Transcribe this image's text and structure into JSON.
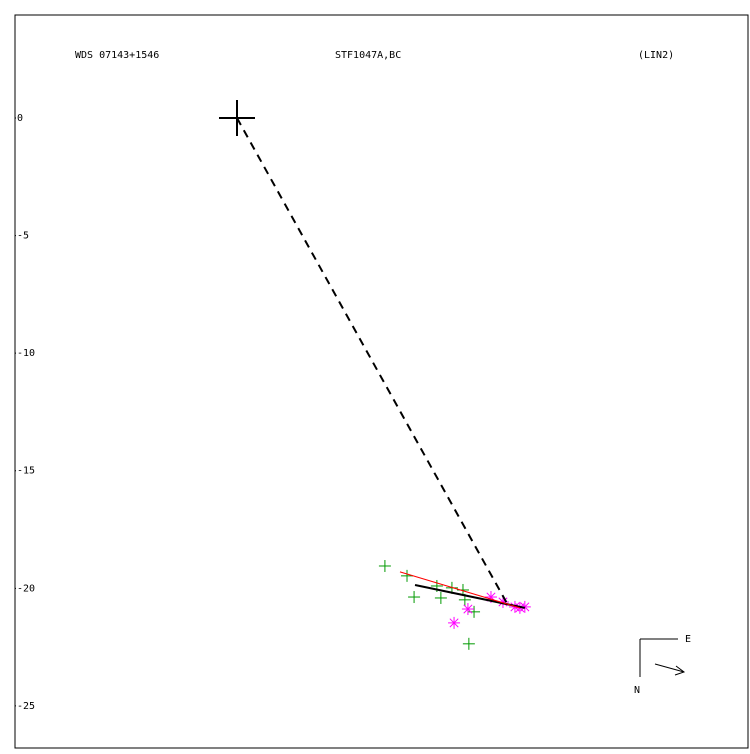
{
  "chart_data": {
    "type": "scatter",
    "title": "WDS 07143+1546",
    "subtitle": "STF1047A,BC",
    "annotation": "(LIN2)",
    "compass": {
      "east": "E",
      "north": "N"
    },
    "xlim": [
      -9.44,
      21.73
    ],
    "ylim": [
      -26.79,
      4.38
    ],
    "yticks": [
      0,
      -5,
      -10,
      -15,
      -20,
      -25
    ],
    "series": [
      {
        "mode": "marker",
        "marker": "plus",
        "size": 18,
        "color": "#000000",
        "x": [
          0
        ],
        "values": [
          0
        ]
      },
      {
        "mode": "marker",
        "marker": "plus",
        "size": 6,
        "color": "#009900",
        "x": [
          6.29,
          7.23,
          7.53,
          8.5,
          8.67,
          9.14,
          9.61,
          9.69,
          10.08,
          9.86
        ],
        "values": [
          -19.05,
          -19.47,
          -20.37,
          -19.9,
          -20.41,
          -19.98,
          -20.07,
          -20.49,
          -21.0,
          -22.36
        ]
      },
      {
        "mode": "marker",
        "marker": "asterisk",
        "size": 6,
        "color": "#ff00ff",
        "x": [
          9.23,
          9.82,
          10.8,
          11.31,
          11.82,
          12.03,
          12.24
        ],
        "values": [
          -21.47,
          -20.88,
          -20.37,
          -20.58,
          -20.79,
          -20.83,
          -20.79
        ]
      },
      {
        "mode": "line",
        "dash": true,
        "width": 2,
        "color": "#000000",
        "x": [
          0,
          11.52
        ],
        "values": [
          0,
          -20.71
        ]
      },
      {
        "mode": "line",
        "dash": false,
        "width": 2,
        "color": "#000000",
        "x": [
          7.57,
          12.24
        ],
        "values": [
          -19.86,
          -20.83
        ]
      },
      {
        "mode": "line",
        "dash": false,
        "width": 1,
        "color": "#ff0000",
        "x": [
          6.93,
          12.03
        ],
        "values": [
          -19.3,
          -20.83
        ]
      }
    ]
  }
}
